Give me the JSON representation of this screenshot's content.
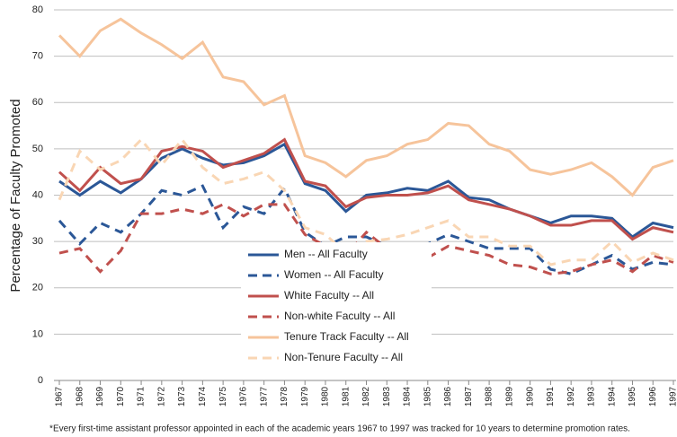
{
  "chart_data": {
    "type": "line",
    "y_label": "Percentage of Faculty Promoted",
    "note": "*Every first-time assistant professor appointed  in each of the academic years 1967 to 1997 was tracked for 10 years to determine promotion rates.",
    "categories": [
      "1967",
      "1968",
      "1969",
      "1970",
      "1971",
      "1972",
      "1973",
      "1974",
      "1975",
      "1976",
      "1977",
      "1978",
      "1979",
      "1980",
      "1981",
      "1982",
      "1983",
      "1984",
      "1985",
      "1986",
      "1987",
      "1988",
      "1989",
      "1990",
      "1991",
      "1992",
      "1993",
      "1994",
      "1995",
      "1996",
      "1997"
    ],
    "ylim": [
      0,
      80
    ],
    "yticks": [
      0,
      10,
      20,
      30,
      40,
      50,
      60,
      70,
      80
    ],
    "grid": true,
    "series": [
      {
        "name": "Men -- All Faculty",
        "color": "#2b5797",
        "dash": false,
        "values": [
          43,
          40,
          43,
          40.5,
          43.5,
          48,
          50,
          48,
          46.5,
          47,
          48.5,
          51,
          42.5,
          41,
          36.5,
          40,
          40.5,
          41.5,
          41,
          43,
          39.5,
          39,
          37,
          35.5,
          34,
          35.5,
          35.5,
          35,
          31,
          34,
          33
        ]
      },
      {
        "name": "Women -- All Faculty",
        "color": "#2b5797",
        "dash": true,
        "values": [
          34.5,
          29.5,
          34,
          32,
          36,
          41,
          40,
          42,
          33,
          37.5,
          36,
          41.5,
          32,
          29,
          31,
          31,
          29,
          29,
          29.5,
          31.5,
          30,
          28.5,
          28.5,
          28.5,
          24,
          23,
          25,
          27,
          24,
          25.5,
          25
        ]
      },
      {
        "name": "White Faculty -- All",
        "color": "#c0504d",
        "dash": false,
        "values": [
          45,
          41,
          46,
          42.5,
          43.5,
          49.5,
          50.5,
          49.5,
          46,
          47.5,
          49,
          52,
          43,
          42,
          37.5,
          39.5,
          40,
          40,
          40.5,
          42,
          39,
          38,
          37,
          35.5,
          33.5,
          33.5,
          34.5,
          34.5,
          30.5,
          33,
          32
        ]
      },
      {
        "name": "Non-white Faculty -- All",
        "color": "#c0504d",
        "dash": true,
        "values": [
          27.5,
          28.5,
          23.5,
          28,
          36,
          36,
          37,
          36,
          38,
          35.5,
          38,
          38,
          31.5,
          29,
          27,
          32,
          28.5,
          28.5,
          26.5,
          29,
          28,
          27,
          25,
          24.5,
          23,
          23.5,
          25,
          26,
          23.5,
          27,
          25.5
        ]
      },
      {
        "name": "Tenure Track Faculty -- All",
        "color": "#f6c49b",
        "dash": false,
        "values": [
          74.5,
          70,
          75.5,
          78,
          75,
          72.5,
          69.5,
          73,
          65.5,
          64.5,
          59.5,
          61.5,
          48.5,
          47,
          44,
          47.5,
          48.5,
          51,
          52,
          55.5,
          55,
          51,
          49.5,
          45.5,
          44.5,
          45.5,
          47,
          44,
          40,
          46,
          47.5
        ]
      },
      {
        "name": "Non-Tenure Faculty -- All",
        "color": "#f9d6b4",
        "dash": true,
        "values": [
          39,
          49.5,
          45.5,
          47.5,
          52,
          46.5,
          52,
          46,
          42.5,
          43.5,
          45,
          41,
          33,
          31.5,
          27.5,
          30,
          30.5,
          31.5,
          33,
          34.5,
          31,
          31,
          29,
          29,
          25,
          26,
          26,
          30,
          25.5,
          27.5,
          26
        ]
      }
    ]
  }
}
